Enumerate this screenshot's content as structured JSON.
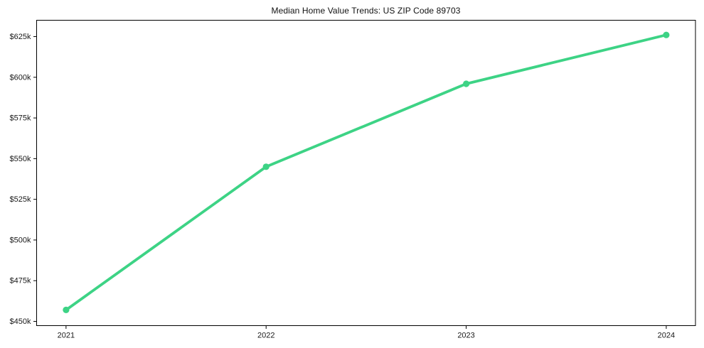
{
  "chart_data": {
    "type": "line",
    "title": "Median Home Value Trends: US ZIP Code 89703",
    "x": [
      2021,
      2022,
      2023,
      2024
    ],
    "values": [
      457000,
      545000,
      596000,
      626000
    ],
    "xticks": {
      "values": [
        2021,
        2022,
        2023,
        2024
      ],
      "labels": [
        "2021",
        "2022",
        "2023",
        "2024"
      ]
    },
    "yticks": {
      "values": [
        450000,
        475000,
        500000,
        525000,
        550000,
        575000,
        600000,
        625000
      ],
      "labels": [
        "$450k",
        "$475k",
        "$500k",
        "$525k",
        "$550k",
        "$575k",
        "$600k",
        "$625k"
      ]
    },
    "xlim": [
      2020.853,
      2024.146
    ],
    "ylim": [
      447375,
      635050
    ],
    "line_color": "#3dd385",
    "marker": "circle",
    "grid": false,
    "legend": false,
    "axis_color": "#000000",
    "text_color": "#191919",
    "background_color": "#ffffff"
  }
}
